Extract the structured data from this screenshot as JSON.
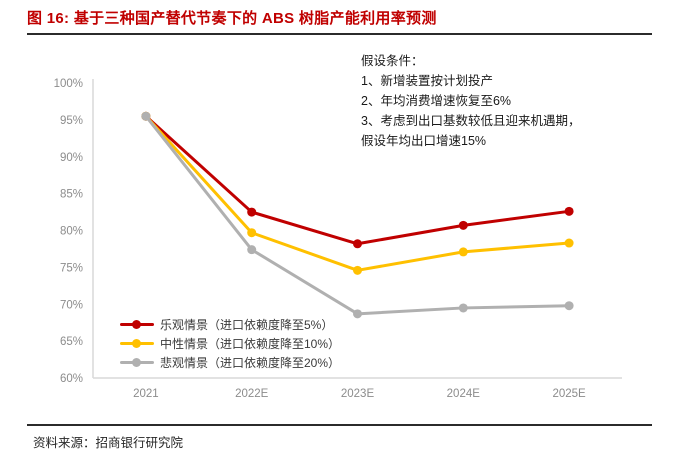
{
  "page": {
    "title": "图 16: 基于三种国产替代节奏下的 ABS 树脂产能利用率预测",
    "source_label": "资料来源：招商银行研究院"
  },
  "annotation": {
    "lines": [
      "假设条件：",
      "1、新增装置按计划投产",
      "2、年均消费增速恢复至6%",
      "3、考虑到出口基数较低且迎来机遇期，",
      "假设年均出口增速15%"
    ]
  },
  "colors": {
    "title_red": "#c00000",
    "rule_dark": "#2b2b2b",
    "axis_line": "#d9d9d9",
    "axis_text": "#8c8c8c"
  },
  "chart_data": {
    "type": "line",
    "title": "基于三种国产替代节奏下的 ABS 树脂产能利用率预测",
    "categories": [
      "2021",
      "2022E",
      "2023E",
      "2024E",
      "2025E"
    ],
    "series": [
      {
        "name": "乐观情景（进口依赖度降至5%）",
        "color": "#c00000",
        "values": [
          95.5,
          82.5,
          78.2,
          80.7,
          82.6
        ]
      },
      {
        "name": "中性情景（进口依赖度降至10%）",
        "color": "#ffc000",
        "values": [
          95.5,
          79.7,
          74.6,
          77.1,
          78.3
        ]
      },
      {
        "name": "悲观情景（进口依赖度降至20%）",
        "color": "#b0b0b0",
        "values": [
          95.5,
          77.4,
          68.7,
          69.5,
          69.8
        ]
      }
    ],
    "ylim": [
      60,
      100
    ],
    "ytick_step": 5,
    "ytick_suffix": "%",
    "xlabel": "",
    "ylabel": "",
    "grid": false,
    "legend_position": "inside-bottom-left",
    "marker": "circle"
  }
}
